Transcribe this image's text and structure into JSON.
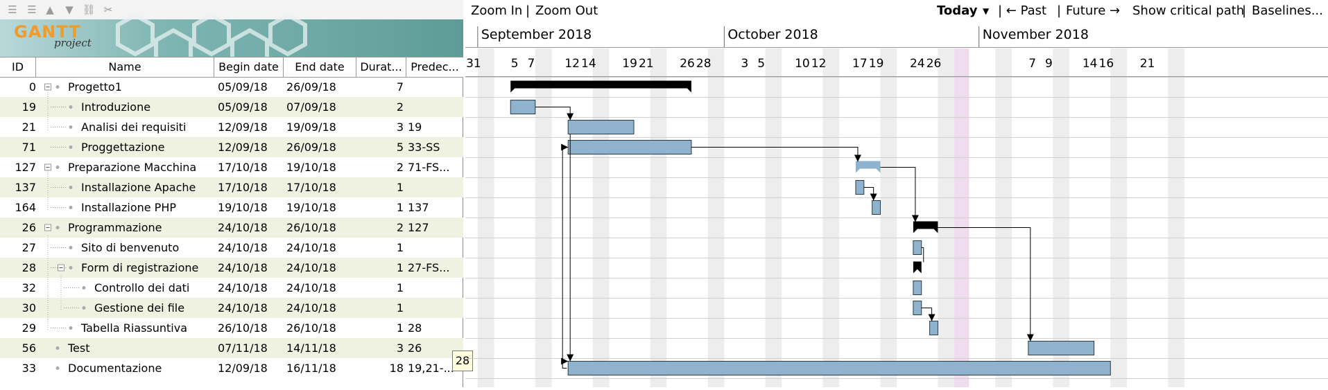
{
  "toolbar": {
    "icons": [
      "outdent-icon",
      "indent-icon",
      "move-up-icon",
      "move-down-icon",
      "link-icon",
      "unlink-icon"
    ]
  },
  "logo": {
    "main": "GANTT",
    "sub": "project"
  },
  "columns": {
    "id": "ID",
    "name": "Name",
    "begin": "Begin date",
    "end": "End date",
    "dur": "Durat...",
    "pred": "Predec..."
  },
  "tasks": [
    {
      "id": "0",
      "name": "Progetto1",
      "begin": "05/09/18",
      "end": "26/09/18",
      "dur": "7",
      "pred": "",
      "level": 0,
      "group": true
    },
    {
      "id": "19",
      "name": "Introduzione",
      "begin": "05/09/18",
      "end": "07/09/18",
      "dur": "2",
      "pred": "",
      "level": 1,
      "group": false
    },
    {
      "id": "21",
      "name": "Analisi dei requisiti",
      "begin": "12/09/18",
      "end": "19/09/18",
      "dur": "3",
      "pred": "19",
      "level": 1,
      "group": false
    },
    {
      "id": "71",
      "name": "Proggettazione",
      "begin": "12/09/18",
      "end": "26/09/18",
      "dur": "5",
      "pred": "33-SS",
      "level": 1,
      "group": false
    },
    {
      "id": "127",
      "name": "Preparazione Macchina",
      "begin": "17/10/18",
      "end": "19/10/18",
      "dur": "2",
      "pred": "71-FS...",
      "level": 0,
      "group": true
    },
    {
      "id": "137",
      "name": "Installazione Apache",
      "begin": "17/10/18",
      "end": "17/10/18",
      "dur": "1",
      "pred": "",
      "level": 1,
      "group": false
    },
    {
      "id": "164",
      "name": "Installazione PHP",
      "begin": "19/10/18",
      "end": "19/10/18",
      "dur": "1",
      "pred": "137",
      "level": 1,
      "group": false
    },
    {
      "id": "26",
      "name": "Programmazione",
      "begin": "24/10/18",
      "end": "26/10/18",
      "dur": "2",
      "pred": "127",
      "level": 0,
      "group": true
    },
    {
      "id": "27",
      "name": "Sito di benvenuto",
      "begin": "24/10/18",
      "end": "24/10/18",
      "dur": "1",
      "pred": "",
      "level": 1,
      "group": false
    },
    {
      "id": "28",
      "name": "Form di registrazione",
      "begin": "24/10/18",
      "end": "24/10/18",
      "dur": "1",
      "pred": "27-FS...",
      "level": 1,
      "group": true
    },
    {
      "id": "32",
      "name": "Controllo dei dati",
      "begin": "24/10/18",
      "end": "24/10/18",
      "dur": "1",
      "pred": "",
      "level": 2,
      "group": false
    },
    {
      "id": "30",
      "name": "Gestione dei file",
      "begin": "24/10/18",
      "end": "24/10/18",
      "dur": "1",
      "pred": "",
      "level": 2,
      "group": false
    },
    {
      "id": "29",
      "name": "Tabella Riassuntiva",
      "begin": "26/10/18",
      "end": "26/10/18",
      "dur": "1",
      "pred": "28",
      "level": 1,
      "group": false
    },
    {
      "id": "56",
      "name": "Test",
      "begin": "07/11/18",
      "end": "14/11/18",
      "dur": "3",
      "pred": "26",
      "level": 0,
      "group": false
    },
    {
      "id": "33",
      "name": "Documentazione",
      "begin": "12/09/18",
      "end": "16/11/18",
      "dur": "18",
      "pred": "19,21-...",
      "level": 0,
      "group": false
    }
  ],
  "tooltip": "28",
  "chart_toolbar": {
    "zoom_in": "Zoom In",
    "sep1": "|",
    "zoom_out": "Zoom Out",
    "today": "Today",
    "past": "| ← Past",
    "sep2": "|",
    "future": "Future →",
    "critical": "Show critical path",
    "sep3": "|",
    "baselines": "Baselines..."
  },
  "months": [
    "September 2018",
    "October 2018",
    "November 2018"
  ],
  "day_labels": [
    "31",
    "5",
    "7",
    "12",
    "14",
    "19",
    "21",
    "26",
    "28",
    "3",
    "5",
    "10",
    "12",
    "17",
    "19",
    "24",
    "26",
    "7",
    "9",
    "14",
    "16",
    "21"
  ],
  "colors": {
    "bar": "#8fb3cc",
    "bar_border": "#2a3a48",
    "summary": "#000000",
    "row_alt": "#eff2e1",
    "weekend": "#ededed",
    "today": "#efdcef"
  }
}
